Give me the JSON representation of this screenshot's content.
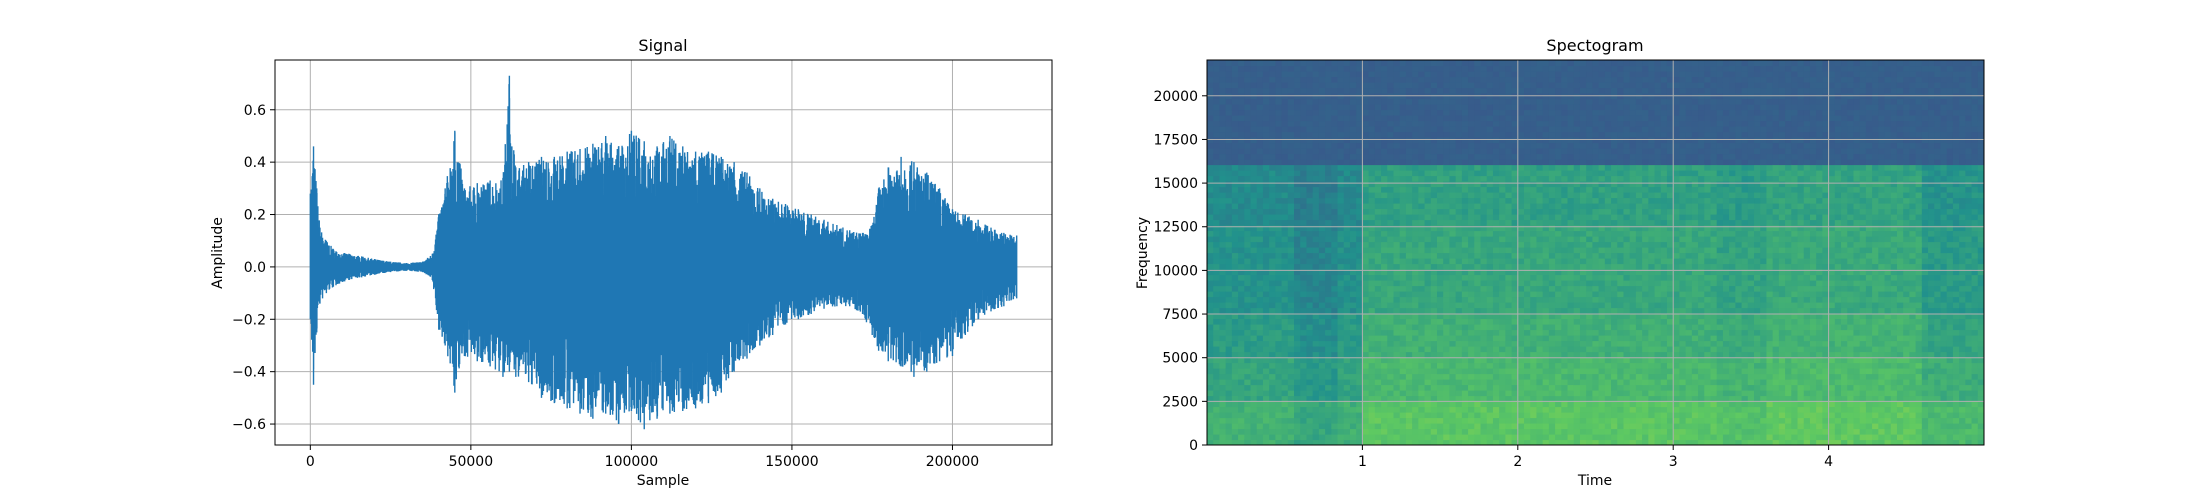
{
  "chart_data": [
    {
      "type": "line",
      "title": "Signal",
      "xlabel": "Sample",
      "ylabel": "Amplitude",
      "xlim": [
        -11000,
        231000
      ],
      "ylim": [
        -0.68,
        0.79
      ],
      "grid": true,
      "line_color": "#1f77b4",
      "xticks": [
        0,
        50000,
        100000,
        150000,
        200000
      ],
      "xtick_labels": [
        "0",
        "50000",
        "100000",
        "150000",
        "200000"
      ],
      "yticks": [
        -0.6,
        -0.4,
        -0.2,
        0.0,
        0.2,
        0.4,
        0.6
      ],
      "ytick_labels": [
        "−0.6",
        "−0.4",
        "−0.2",
        "0.0",
        "0.2",
        "0.4",
        "0.6"
      ],
      "series": [
        {
          "x": [
            0,
            1000,
            2000,
            3000,
            5000,
            8000,
            12000,
            16000,
            20000,
            25000,
            30000,
            35000,
            38000,
            40000,
            42000,
            45000,
            48000,
            52000,
            56000,
            60000,
            62000,
            64000,
            68000,
            72000,
            76000,
            80000,
            84000,
            88000,
            92000,
            96000,
            100000,
            104000,
            108000,
            112000,
            116000,
            120000,
            124000,
            128000,
            132000,
            136000,
            140000,
            144000,
            148000,
            152000,
            156000,
            160000,
            164000,
            168000,
            172000,
            175000,
            177000,
            180000,
            184000,
            188000,
            192000,
            196000,
            200000,
            204000,
            208000,
            212000,
            216000,
            220000
          ],
          "upper": [
            0.28,
            0.46,
            0.3,
            0.15,
            0.1,
            0.06,
            0.05,
            0.04,
            0.03,
            0.02,
            0.015,
            0.02,
            0.05,
            0.2,
            0.3,
            0.52,
            0.3,
            0.32,
            0.33,
            0.34,
            0.73,
            0.38,
            0.4,
            0.42,
            0.42,
            0.44,
            0.45,
            0.47,
            0.5,
            0.46,
            0.52,
            0.48,
            0.46,
            0.5,
            0.46,
            0.44,
            0.44,
            0.42,
            0.4,
            0.36,
            0.3,
            0.26,
            0.24,
            0.22,
            0.2,
            0.18,
            0.16,
            0.14,
            0.13,
            0.16,
            0.3,
            0.38,
            0.42,
            0.4,
            0.36,
            0.3,
            0.22,
            0.2,
            0.18,
            0.15,
            0.13,
            0.12
          ],
          "lower": [
            -0.2,
            -0.45,
            -0.25,
            -0.14,
            -0.1,
            -0.07,
            -0.05,
            -0.04,
            -0.03,
            -0.02,
            -0.015,
            -0.02,
            -0.05,
            -0.24,
            -0.3,
            -0.48,
            -0.34,
            -0.36,
            -0.38,
            -0.42,
            -0.4,
            -0.42,
            -0.44,
            -0.5,
            -0.52,
            -0.54,
            -0.56,
            -0.58,
            -0.56,
            -0.6,
            -0.55,
            -0.62,
            -0.58,
            -0.56,
            -0.55,
            -0.54,
            -0.52,
            -0.48,
            -0.4,
            -0.35,
            -0.3,
            -0.26,
            -0.22,
            -0.2,
            -0.18,
            -0.16,
            -0.15,
            -0.15,
            -0.18,
            -0.26,
            -0.32,
            -0.36,
            -0.38,
            -0.42,
            -0.4,
            -0.36,
            -0.34,
            -0.26,
            -0.2,
            -0.17,
            -0.15,
            -0.12
          ]
        }
      ]
    },
    {
      "type": "heatmap",
      "title": "Spectogram",
      "xlabel": "Time",
      "ylabel": "Frequency",
      "xlim": [
        0,
        5.0
      ],
      "ylim": [
        0,
        22050
      ],
      "grid": true,
      "xticks": [
        1,
        2,
        3,
        4
      ],
      "xtick_labels": [
        "1",
        "2",
        "3",
        "4"
      ],
      "yticks": [
        0,
        2500,
        5000,
        7500,
        10000,
        12500,
        15000,
        17500,
        20000
      ],
      "ytick_labels": [
        "0",
        "2500",
        "5000",
        "7500",
        "10000",
        "12500",
        "15000",
        "17500",
        "20000"
      ],
      "colormap": [
        "#440154",
        "#3b528b",
        "#21918c",
        "#5ec962",
        "#fde725"
      ],
      "time_segments": [
        {
          "start": 0.0,
          "end": 0.55,
          "level": 0.52
        },
        {
          "start": 0.55,
          "end": 0.85,
          "level": 0.42
        },
        {
          "start": 0.85,
          "end": 1.0,
          "level": 0.5
        },
        {
          "start": 1.0,
          "end": 3.3,
          "level": 0.68
        },
        {
          "start": 3.3,
          "end": 3.6,
          "level": 0.64
        },
        {
          "start": 3.6,
          "end": 4.6,
          "level": 0.7
        },
        {
          "start": 4.6,
          "end": 5.0,
          "level": 0.58
        }
      ],
      "frequency_bands": [
        {
          "from": 0,
          "to": 2500,
          "level": 0.92
        },
        {
          "from": 2500,
          "to": 5000,
          "level": 0.8
        },
        {
          "from": 5000,
          "to": 7500,
          "level": 0.72
        },
        {
          "from": 7500,
          "to": 12500,
          "level": 0.64
        },
        {
          "from": 12500,
          "to": 16000,
          "level": 0.58
        },
        {
          "from": 16000,
          "to": 22050,
          "level": 0.32
        }
      ]
    }
  ]
}
